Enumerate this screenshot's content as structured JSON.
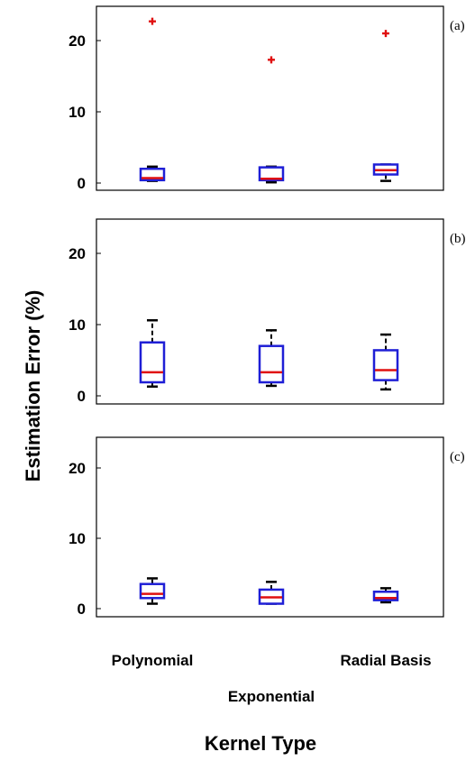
{
  "chart_data": {
    "type": "box",
    "xlabel": "Kernel Type",
    "ylabel": "Estimation Error (%)",
    "categories": [
      "Polynomial",
      "Exponential",
      "Radial Basis"
    ],
    "ylim": [
      0,
      25
    ],
    "yticks": [
      "0",
      "10",
      "20"
    ],
    "colors": {
      "box": "#1f1fd6",
      "median": "#e01010",
      "whisker": "#000000",
      "outlier": "#e01010"
    },
    "panels": [
      {
        "label": "(a)",
        "boxes": [
          {
            "category": "Polynomial",
            "min": 0.3,
            "q1": 0.4,
            "median": 0.7,
            "q3": 2.0,
            "max": 2.3,
            "outliers": [
              22.7
            ]
          },
          {
            "category": "Exponential",
            "min": 0.1,
            "q1": 0.4,
            "median": 0.6,
            "q3": 2.2,
            "max": 2.3,
            "outliers": [
              17.3
            ]
          },
          {
            "category": "Radial Basis",
            "min": 0.3,
            "q1": 1.2,
            "median": 1.8,
            "q3": 2.6,
            "max": 2.6,
            "outliers": [
              21.0
            ]
          }
        ]
      },
      {
        "label": "(b)",
        "boxes": [
          {
            "category": "Polynomial",
            "min": 1.3,
            "q1": 1.9,
            "median": 3.3,
            "q3": 7.5,
            "max": 10.6,
            "outliers": []
          },
          {
            "category": "Exponential",
            "min": 1.4,
            "q1": 1.9,
            "median": 3.3,
            "q3": 7.0,
            "max": 9.2,
            "outliers": []
          },
          {
            "category": "Radial Basis",
            "min": 0.9,
            "q1": 2.2,
            "median": 3.6,
            "q3": 6.4,
            "max": 8.6,
            "outliers": []
          }
        ]
      },
      {
        "label": "(c)",
        "boxes": [
          {
            "category": "Polynomial",
            "min": 0.7,
            "q1": 1.5,
            "median": 2.1,
            "q3": 3.5,
            "max": 4.3,
            "outliers": []
          },
          {
            "category": "Exponential",
            "min": 0.7,
            "q1": 0.7,
            "median": 1.6,
            "q3": 2.7,
            "max": 3.8,
            "outliers": []
          },
          {
            "category": "Radial Basis",
            "min": 0.9,
            "q1": 1.2,
            "median": 1.5,
            "q3": 2.4,
            "max": 2.9,
            "outliers": []
          }
        ]
      }
    ]
  }
}
